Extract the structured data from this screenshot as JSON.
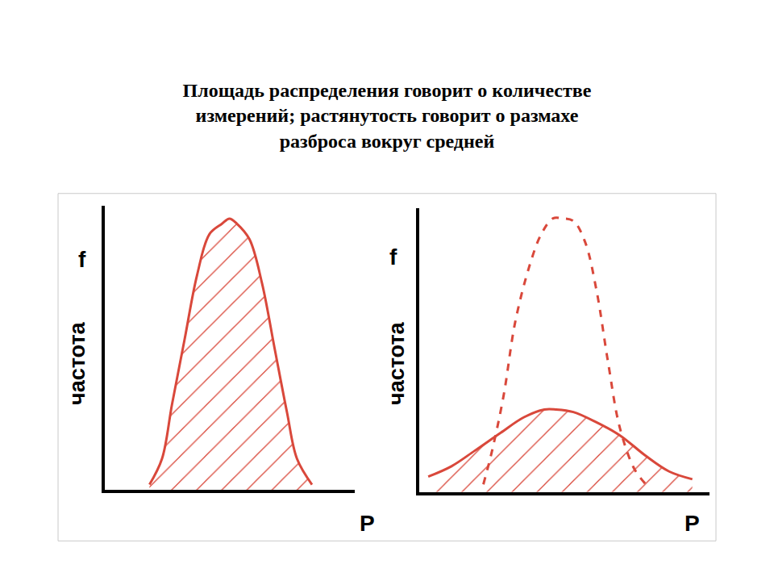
{
  "title": [
    "Площадь распределения говорит о количестве",
    "измерений; растянутость говорит о размахе",
    "разброса вокруг средней"
  ],
  "chart_data": [
    {
      "type": "line",
      "y_symbol": "f",
      "ylabel": "частота",
      "xlabel": "P",
      "xlim": [
        0,
        10
      ],
      "ylim": [
        0,
        11
      ],
      "tick_labels": false,
      "grid": false,
      "series": [
        {
          "type": "area",
          "color": "#d9483b",
          "line_style": "solid",
          "x": [
            1.8,
            2.3,
            2.7,
            3.2,
            3.7,
            4.2,
            4.7,
            5.0,
            5.3,
            5.8,
            6.3,
            6.8,
            7.3,
            7.7,
            8.3
          ],
          "values": [
            0.2,
            1.2,
            3.3,
            5.8,
            8.3,
            9.9,
            10.3,
            10.5,
            10.3,
            9.7,
            8.0,
            5.5,
            3.0,
            1.2,
            0.2
          ]
        }
      ]
    },
    {
      "type": "line",
      "y_symbol": "f",
      "ylabel": "частота",
      "xlabel": "P",
      "xlim": [
        0,
        10
      ],
      "ylim": [
        0,
        11
      ],
      "tick_labels": false,
      "grid": false,
      "series": [
        {
          "type": "line",
          "color": "#d9483b",
          "line_style": "dashed",
          "x": [
            2.2,
            2.5,
            2.9,
            3.3,
            3.8,
            4.2,
            4.6,
            4.9,
            5.3,
            5.7,
            6.1,
            6.5,
            6.9,
            7.4,
            7.8
          ],
          "values": [
            0.3,
            1.6,
            3.75,
            6.6,
            8.8,
            10.0,
            10.6,
            10.6,
            10.5,
            9.7,
            7.8,
            5.0,
            2.5,
            0.9,
            0.3
          ]
        },
        {
          "type": "area",
          "color": "#d9483b",
          "line_style": "solid",
          "x": [
            0.3,
            1.1,
            1.9,
            2.8,
            3.6,
            4.3,
            4.7,
            5.3,
            6.1,
            6.9,
            7.8,
            8.6,
            9.4
          ],
          "values": [
            0.6,
            1.0,
            1.6,
            2.3,
            2.9,
            3.2,
            3.2,
            3.1,
            2.7,
            2.2,
            1.4,
            0.8,
            0.5
          ]
        }
      ]
    }
  ]
}
